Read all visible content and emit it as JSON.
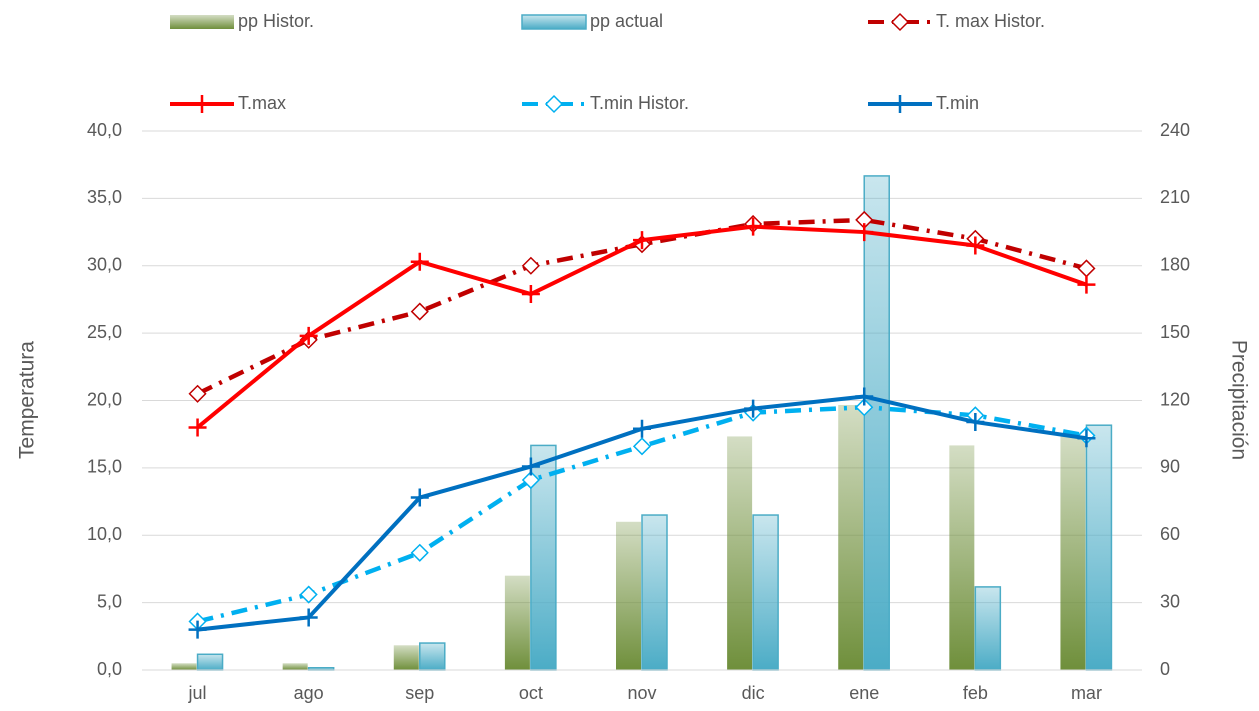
{
  "chart_data": {
    "type": "combo",
    "y_label": "Temperatura",
    "y2_label": "Precipitación",
    "categories": [
      "jul",
      "ago",
      "sep",
      "oct",
      "nov",
      "dic",
      "ene",
      "feb",
      "mar"
    ],
    "ylim": [
      0,
      40
    ],
    "yticks": [
      {
        "value": 0,
        "label": "0,0"
      },
      {
        "value": 5,
        "label": "5,0"
      },
      {
        "value": 10,
        "label": "10,0"
      },
      {
        "value": 15,
        "label": "15,0"
      },
      {
        "value": 20,
        "label": "20,0"
      },
      {
        "value": 25,
        "label": "25,0"
      },
      {
        "value": 30,
        "label": "30,0"
      },
      {
        "value": 35,
        "label": "35,0"
      },
      {
        "value": 40,
        "label": "40,0"
      }
    ],
    "y2lim": [
      0,
      240
    ],
    "y2ticks": [
      0,
      30,
      60,
      90,
      120,
      150,
      180,
      210,
      240
    ],
    "grid": true,
    "series": [
      {
        "name": "pp Histor.",
        "type": "bar",
        "axis": "y2",
        "color": "#6f8f3b",
        "values": [
          3,
          3,
          11,
          42,
          66,
          104,
          118,
          100,
          105
        ]
      },
      {
        "name": "pp actual",
        "type": "bar",
        "axis": "y2",
        "color": "#4bacc6",
        "values": [
          7,
          1,
          12,
          100,
          69,
          69,
          220,
          37,
          109
        ]
      },
      {
        "name": "T. max Histor.",
        "type": "line",
        "color": "#c00000",
        "dash": "dashdot",
        "marker": "diamond",
        "values": [
          20.5,
          24.5,
          26.6,
          30.0,
          31.6,
          33.1,
          33.4,
          32.0,
          29.8
        ]
      },
      {
        "name": "T.max",
        "type": "line",
        "color": "#ff0000",
        "dash": "solid",
        "marker": "plus",
        "values": [
          18.0,
          24.8,
          30.3,
          27.9,
          31.9,
          32.9,
          32.5,
          31.5,
          28.6
        ]
      },
      {
        "name": "T.min Histor.",
        "type": "line",
        "color": "#00b0f0",
        "dash": "dashdot",
        "marker": "diamond",
        "values": [
          3.6,
          5.6,
          8.7,
          14.1,
          16.6,
          19.1,
          19.5,
          18.9,
          17.4
        ]
      },
      {
        "name": "T.min",
        "type": "line",
        "color": "#0070c0",
        "dash": "solid",
        "marker": "plus",
        "values": [
          3.0,
          3.9,
          12.8,
          15.1,
          17.9,
          19.4,
          20.3,
          18.4,
          17.2
        ]
      }
    ]
  }
}
